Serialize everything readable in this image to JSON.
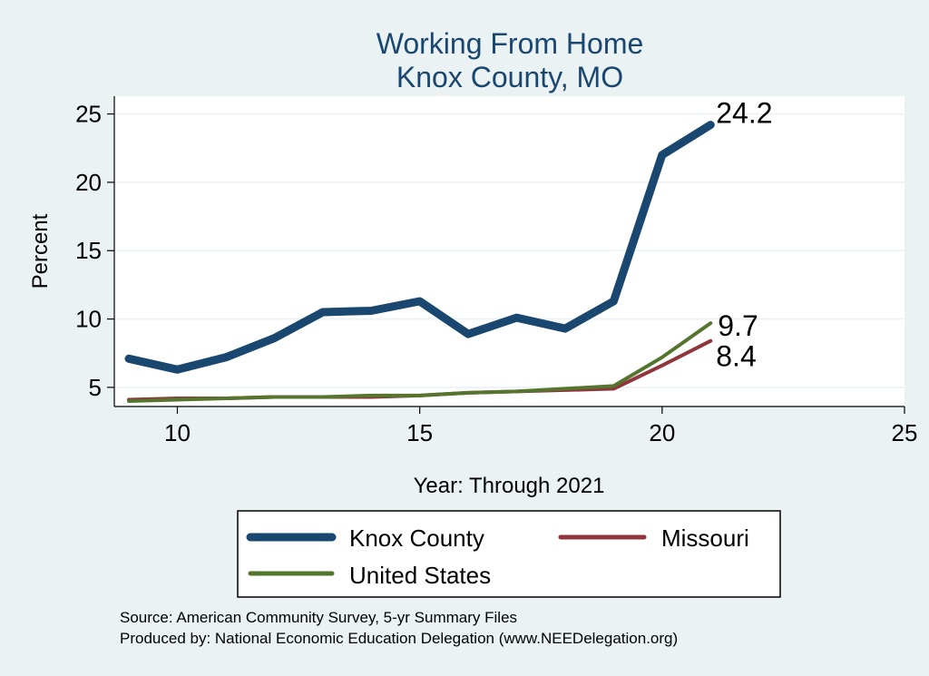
{
  "chart_data": {
    "type": "line",
    "title": "Working From Home",
    "subtitle": "Knox County, MO",
    "xlabel": "Year: Through 2021",
    "ylabel": "Percent",
    "xlim": [
      8.7,
      25
    ],
    "ylim": [
      3.6,
      26.3
    ],
    "xticks": [
      10,
      15,
      20,
      25
    ],
    "yticks": [
      5,
      10,
      15,
      20,
      25
    ],
    "grid": true,
    "legend_position": "bottom",
    "x": [
      9,
      10,
      11,
      12,
      13,
      14,
      15,
      16,
      17,
      18,
      19,
      20,
      21
    ],
    "series": [
      {
        "name": "Knox County",
        "color": "#1a476f",
        "values": [
          7.1,
          6.3,
          7.2,
          8.6,
          10.5,
          10.6,
          11.3,
          8.9,
          10.1,
          9.3,
          11.3,
          22.0,
          24.2
        ],
        "end_label": "24.2"
      },
      {
        "name": "Missouri",
        "color": "#90353b",
        "values": [
          4.1,
          4.2,
          4.2,
          4.3,
          4.3,
          4.3,
          4.4,
          4.6,
          4.7,
          4.8,
          4.9,
          6.6,
          8.4
        ],
        "end_label": "8.4"
      },
      {
        "name": "United States",
        "color": "#55752f",
        "values": [
          4.0,
          4.1,
          4.2,
          4.3,
          4.3,
          4.4,
          4.4,
          4.6,
          4.7,
          4.9,
          5.1,
          7.2,
          9.7
        ],
        "end_label": "9.7"
      }
    ],
    "notes": [
      "Source: American Community Survey, 5-yr Summary Files",
      "Produced by: National Economic Education Delegation (www.NEEDelegation.org)"
    ]
  }
}
